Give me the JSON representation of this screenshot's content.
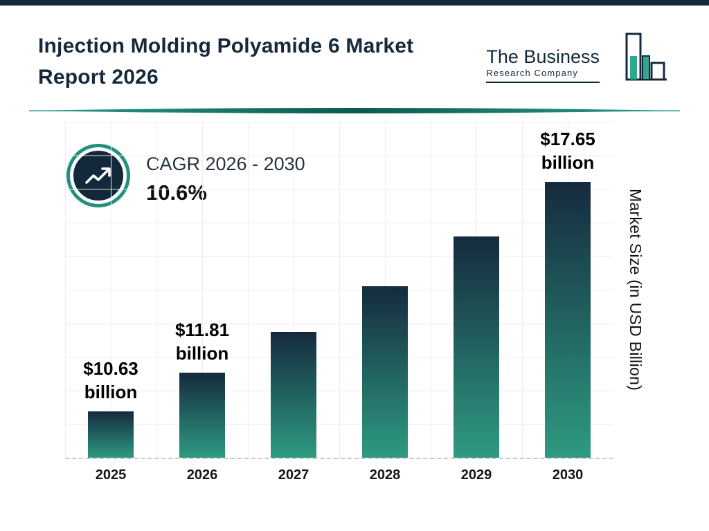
{
  "page": {
    "title": "Injection Molding Polyamide 6 Market Report 2026"
  },
  "logo": {
    "line1": "The Business",
    "line2": "Research Company"
  },
  "cagr": {
    "label": "CAGR 2026 - 2030",
    "value": "10.6%"
  },
  "chart_data": {
    "type": "bar",
    "title": "Injection Molding Polyamide 6 Market Report 2026",
    "categories": [
      "2025",
      "2026",
      "2027",
      "2028",
      "2029",
      "2030"
    ],
    "values": [
      10.63,
      11.81,
      13.06,
      14.45,
      15.98,
      17.65
    ],
    "labeled_bars": [
      {
        "index": 0,
        "line1": "$10.63",
        "line2": "billion"
      },
      {
        "index": 1,
        "line1": "$11.81",
        "line2": "billion"
      },
      {
        "index": 5,
        "line1": "$17.65",
        "line2": "billion"
      }
    ],
    "xlabel": "",
    "ylabel": "Market Size (in USD Billion)",
    "ylim": [
      9.2,
      19.5
    ],
    "grid": true,
    "legend": false,
    "bar_gradient_top": "#152a3e",
    "bar_gradient_bottom": "#2e9a81"
  },
  "colors": {
    "navy": "#14283c",
    "teal": "#23907e",
    "grid": "#ececec"
  }
}
